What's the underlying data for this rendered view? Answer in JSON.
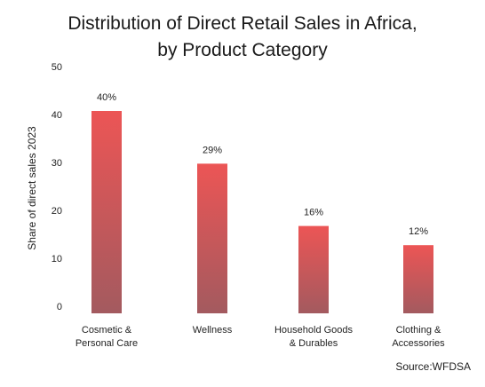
{
  "chart_data": {
    "type": "bar",
    "title": [
      "Distribution of Direct Retail Sales in Africa,",
      "by Product Category"
    ],
    "ylabel": "Share of direct sales 2023",
    "xlabel": "",
    "ylim": [
      0,
      50
    ],
    "yticks": [
      0,
      10,
      20,
      30,
      40,
      50
    ],
    "grid": false,
    "legend": "none",
    "categories": [
      [
        "Cosmetic &",
        "Personal Care"
      ],
      [
        "Wellness"
      ],
      [
        "Household Goods",
        "& Durables"
      ],
      [
        "Clothing &",
        "Accessories"
      ]
    ],
    "values": [
      40,
      29,
      16,
      12
    ],
    "data_labels": [
      "40%",
      "29%",
      "16%",
      "12%"
    ],
    "colors": {
      "bar_top": "#ec5555",
      "bar_bottom": "#a35a5f"
    }
  },
  "source": "Source:WFDSA"
}
